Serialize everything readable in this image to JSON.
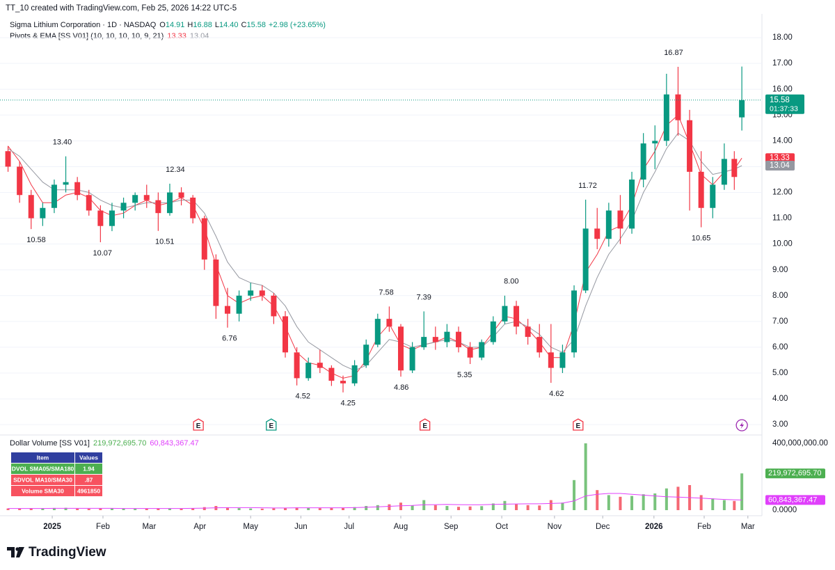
{
  "page": {
    "credit": "TT_10 created with TradingView.com, Feb 25, 2026 14:22 UTC-5",
    "brand": "TradingView"
  },
  "chart_data": [
    {
      "type": "candlestick",
      "header": {
        "symbol": "Sigma Lithium Corporation · 1D · NASDAQ",
        "ohlc": [
          {
            "label": "O",
            "value": "14.91"
          },
          {
            "label": "H",
            "value": "16.88"
          },
          {
            "label": "L",
            "value": "14.40"
          },
          {
            "label": "C",
            "value": "15.58"
          }
        ],
        "change": "+2.98 (+23.65%)",
        "indicator": "Pivots & EMA [SS V01] (10, 10, 10, 10, 9, 21)",
        "countdown": "01:37:33"
      },
      "x": [
        -0.88,
        -0.65,
        -0.42,
        -0.19,
        0.04,
        0.27,
        0.5,
        0.73,
        0.96,
        1.19,
        1.42,
        1.65,
        1.88,
        2.11,
        2.34,
        2.57,
        2.8,
        3.03,
        3.26,
        3.49,
        3.72,
        3.95,
        4.18,
        4.41,
        4.64,
        4.87,
        5.1,
        5.33,
        5.56,
        5.79,
        6.02,
        6.25,
        6.48,
        6.71,
        6.94,
        7.17,
        7.4,
        7.63,
        7.86,
        8.09,
        8.32,
        8.55,
        8.78,
        9.01,
        9.24,
        9.47,
        9.7,
        9.93,
        10.16,
        10.39,
        10.62,
        10.85,
        11.08,
        11.31,
        11.54,
        11.77,
        12.0,
        12.23,
        12.46,
        12.69,
        12.92,
        13.15,
        13.38,
        13.58,
        13.73
      ],
      "open": [
        13.6,
        13.0,
        11.9,
        11.0,
        11.4,
        12.3,
        12.4,
        11.9,
        11.3,
        10.7,
        11.3,
        11.6,
        11.9,
        11.7,
        11.2,
        12.0,
        11.8,
        11.0,
        9.4,
        7.6,
        7.3,
        8.0,
        8.2,
        8.0,
        7.2,
        5.8,
        4.8,
        5.4,
        5.2,
        4.7,
        4.6,
        5.3,
        6.1,
        7.1,
        6.8,
        5.1,
        6.0,
        6.4,
        6.2,
        6.6,
        6.0,
        5.6,
        6.2,
        7.0,
        7.6,
        6.8,
        6.4,
        5.8,
        5.2,
        5.8,
        8.2,
        10.6,
        10.2,
        11.3,
        10.6,
        12.5,
        13.9,
        14.0,
        15.8,
        14.8,
        12.8,
        11.4,
        12.3,
        13.3,
        14.91
      ],
      "high": [
        13.8,
        13.2,
        12.1,
        11.6,
        12.5,
        13.4,
        12.6,
        12.1,
        11.5,
        11.6,
        11.8,
        12.0,
        12.3,
        12.0,
        12.34,
        12.2,
        11.9,
        11.1,
        9.6,
        8.3,
        8.2,
        8.5,
        8.4,
        8.1,
        7.4,
        6.0,
        5.6,
        5.9,
        5.3,
        4.9,
        5.5,
        6.3,
        7.3,
        7.58,
        6.9,
        6.2,
        7.39,
        6.8,
        6.9,
        6.8,
        6.2,
        6.3,
        7.2,
        8.0,
        7.8,
        7.1,
        6.9,
        6.9,
        6.1,
        8.4,
        11.72,
        11.4,
        11.6,
        11.9,
        12.8,
        14.3,
        14.6,
        16.6,
        16.87,
        15.2,
        13.6,
        12.6,
        13.9,
        13.6,
        16.88
      ],
      "low": [
        12.8,
        11.6,
        10.58,
        10.7,
        11.2,
        12.0,
        11.7,
        11.1,
        10.07,
        10.5,
        11.0,
        11.3,
        11.4,
        10.51,
        11.1,
        11.5,
        10.8,
        9.0,
        7.1,
        6.76,
        7.0,
        7.8,
        7.8,
        6.9,
        5.6,
        4.52,
        4.7,
        5.0,
        4.5,
        4.25,
        4.5,
        5.2,
        6.0,
        6.6,
        4.86,
        5.0,
        5.9,
        5.9,
        6.0,
        5.8,
        5.35,
        5.5,
        6.1,
        6.9,
        6.5,
        6.1,
        5.6,
        4.62,
        5.0,
        5.6,
        8.1,
        9.8,
        9.9,
        10.0,
        10.4,
        12.2,
        12.9,
        13.8,
        14.2,
        11.3,
        10.65,
        11.0,
        12.1,
        12.1,
        14.4
      ],
      "close": [
        13.0,
        11.9,
        11.0,
        11.4,
        12.3,
        12.4,
        11.9,
        11.3,
        10.7,
        11.3,
        11.6,
        11.9,
        11.7,
        11.2,
        12.0,
        11.8,
        11.0,
        9.4,
        7.6,
        7.3,
        8.0,
        8.2,
        8.0,
        7.2,
        5.8,
        4.8,
        5.4,
        5.2,
        4.7,
        4.6,
        5.3,
        6.1,
        7.1,
        6.8,
        5.1,
        6.0,
        6.4,
        6.2,
        6.6,
        6.0,
        5.6,
        6.2,
        7.0,
        7.6,
        6.8,
        6.4,
        5.8,
        5.2,
        5.8,
        8.2,
        10.6,
        10.2,
        11.3,
        10.6,
        12.5,
        13.9,
        14.0,
        15.8,
        14.8,
        12.8,
        11.4,
        12.3,
        13.3,
        12.6,
        15.58
      ],
      "up_color": "#089981",
      "down_color": "#f23645",
      "ema": [
        {
          "color": "#f23645",
          "values": [
            13.8,
            13.2,
            12.3,
            11.6,
            11.6,
            11.9,
            12.0,
            11.8,
            11.3,
            11.1,
            11.2,
            11.5,
            11.7,
            11.5,
            11.6,
            11.8,
            11.5,
            10.6,
            9.2,
            8.0,
            7.7,
            7.9,
            8.0,
            7.6,
            6.8,
            5.8,
            5.4,
            5.3,
            5.0,
            4.8,
            4.9,
            5.5,
            6.4,
            6.9,
            6.1,
            5.9,
            6.1,
            6.2,
            6.4,
            6.2,
            5.9,
            6.0,
            6.6,
            7.2,
            7.1,
            6.7,
            6.2,
            5.6,
            5.6,
            6.9,
            8.9,
            9.6,
            10.5,
            10.7,
            11.5,
            12.9,
            13.6,
            14.6,
            15.0,
            13.9,
            12.7,
            12.3,
            12.8,
            12.9,
            13.33
          ]
        },
        {
          "color": "#9598a1",
          "values": [
            13.7,
            13.4,
            12.9,
            12.4,
            12.1,
            12.1,
            12.1,
            12.0,
            11.7,
            11.5,
            11.4,
            11.5,
            11.6,
            11.6,
            11.6,
            11.7,
            11.7,
            11.2,
            10.3,
            9.3,
            8.7,
            8.5,
            8.4,
            8.1,
            7.6,
            6.8,
            6.2,
            5.9,
            5.6,
            5.3,
            5.1,
            5.3,
            5.8,
            6.3,
            6.2,
            6.0,
            6.1,
            6.2,
            6.3,
            6.2,
            6.0,
            6.0,
            6.4,
            6.9,
            7.0,
            6.8,
            6.5,
            6.0,
            5.8,
            6.3,
            7.6,
            8.7,
            9.6,
            10.2,
            10.9,
            12.0,
            12.8,
            13.7,
            14.3,
            14.0,
            13.2,
            12.7,
            12.8,
            12.9,
            13.04
          ]
        }
      ],
      "pivots": [
        {
          "text": "10.58",
          "value": 10.58,
          "x": -0.32,
          "kind": "low"
        },
        {
          "text": "13.40",
          "value": 13.4,
          "x": 0.2,
          "kind": "high"
        },
        {
          "text": "10.07",
          "value": 10.07,
          "x": 1.0,
          "kind": "low"
        },
        {
          "text": "10.51",
          "value": 10.51,
          "x": 2.24,
          "kind": "low"
        },
        {
          "text": "12.34",
          "value": 12.34,
          "x": 2.45,
          "kind": "high"
        },
        {
          "text": "6.76",
          "value": 6.76,
          "x": 3.53,
          "kind": "low"
        },
        {
          "text": "4.52",
          "value": 4.52,
          "x": 4.99,
          "kind": "low"
        },
        {
          "text": "4.25",
          "value": 4.25,
          "x": 5.89,
          "kind": "low"
        },
        {
          "text": "7.58",
          "value": 7.58,
          "x": 6.65,
          "kind": "high"
        },
        {
          "text": "4.86",
          "value": 4.86,
          "x": 6.95,
          "kind": "low"
        },
        {
          "text": "7.39",
          "value": 7.39,
          "x": 7.4,
          "kind": "high"
        },
        {
          "text": "5.35",
          "value": 5.35,
          "x": 8.21,
          "kind": "low"
        },
        {
          "text": "8.00",
          "value": 8.0,
          "x": 9.14,
          "kind": "high"
        },
        {
          "text": "4.62",
          "value": 4.62,
          "x": 10.04,
          "kind": "low"
        },
        {
          "text": "11.72",
          "value": 11.72,
          "x": 10.66,
          "kind": "high"
        },
        {
          "text": "16.87",
          "value": 16.87,
          "x": 12.37,
          "kind": "high"
        },
        {
          "text": "10.65",
          "value": 10.65,
          "x": 12.92,
          "kind": "low"
        }
      ],
      "events": [
        {
          "label": "E",
          "x": 2.91,
          "color": "#f23645"
        },
        {
          "label": "E",
          "x": 4.36,
          "color": "#089981"
        },
        {
          "label": "E",
          "x": 7.42,
          "color": "#f23645"
        },
        {
          "label": "E",
          "x": 10.47,
          "color": "#f23645"
        },
        {
          "x": 13.73,
          "color": "#9c27b0"
        }
      ],
      "xlim": [
        -1.04,
        14.13
      ],
      "xticks": [
        {
          "value": 0,
          "label": "2025"
        },
        {
          "value": 1.01,
          "label": "Feb"
        },
        {
          "value": 1.93,
          "label": "Mar"
        },
        {
          "value": 2.94,
          "label": "Apr"
        },
        {
          "value": 3.95,
          "label": "May"
        },
        {
          "value": 4.95,
          "label": "Jun"
        },
        {
          "value": 5.91,
          "label": "Jul"
        },
        {
          "value": 6.94,
          "label": "Aug"
        },
        {
          "value": 7.94,
          "label": "Sep"
        },
        {
          "value": 8.95,
          "label": "Oct"
        },
        {
          "value": 10.0,
          "label": "Nov"
        },
        {
          "value": 10.96,
          "label": "Dec"
        },
        {
          "value": 11.98,
          "label": "2026"
        },
        {
          "value": 12.98,
          "label": "Feb"
        },
        {
          "value": 13.85,
          "label": "Mar"
        }
      ],
      "ylim": [
        2.68,
        18.92
      ],
      "yticks": [
        {
          "value": 3,
          "label": "3.00"
        },
        {
          "value": 4,
          "label": "4.00"
        },
        {
          "value": 5,
          "label": "5.00"
        },
        {
          "value": 6,
          "label": "6.00"
        },
        {
          "value": 7,
          "label": "7.00"
        },
        {
          "value": 8,
          "label": "8.00"
        },
        {
          "value": 9,
          "label": "9.00"
        },
        {
          "value": 10,
          "label": "10.00"
        },
        {
          "value": 11,
          "label": "11.00"
        },
        {
          "value": 12,
          "label": "12.00"
        },
        {
          "value": 13,
          "label": "13.00"
        },
        {
          "value": 14,
          "label": "14.00"
        },
        {
          "value": 15,
          "label": "15.00"
        },
        {
          "value": 16,
          "label": "16.00"
        },
        {
          "value": 17,
          "label": "17.00"
        },
        {
          "value": 18,
          "label": "18.00"
        }
      ],
      "grid": true
    },
    {
      "type": "bar",
      "title": "Dollar Volume [SS V01]",
      "last_label": "219,972,695.70",
      "ma_label": "60,843,367.47",
      "values": [
        10000000,
        9000000,
        12000000,
        11000000,
        13000000,
        14000000,
        9000000,
        8000000,
        12000000,
        10000000,
        9000000,
        8000000,
        9000000,
        11000000,
        10000000,
        9000000,
        11000000,
        18000000,
        25000000,
        15000000,
        12000000,
        10000000,
        9000000,
        11000000,
        14000000,
        16000000,
        13000000,
        12000000,
        14000000,
        15000000,
        18000000,
        25000000,
        30000000,
        35000000,
        45000000,
        28000000,
        60000000,
        30000000,
        25000000,
        20000000,
        22000000,
        24000000,
        40000000,
        55000000,
        35000000,
        30000000,
        28000000,
        60000000,
        45000000,
        180000000,
        400000000,
        120000000,
        90000000,
        80000000,
        85000000,
        95000000,
        100000000,
        130000000,
        140000000,
        150000000,
        90000000,
        70000000,
        60000000,
        55000000,
        219972695.7
      ],
      "ma": {
        "color": "#e040fb",
        "values": [
          10000000,
          10000000,
          10000000,
          10000000,
          11000000,
          11000000,
          11000000,
          11000000,
          11000000,
          11000000,
          10000000,
          10000000,
          10000000,
          10000000,
          10000000,
          10000000,
          11000000,
          12000000,
          14000000,
          15000000,
          15000000,
          15000000,
          14000000,
          13000000,
          13000000,
          14000000,
          14000000,
          14000000,
          14000000,
          14000000,
          15000000,
          17000000,
          20000000,
          23000000,
          26000000,
          28000000,
          32000000,
          33000000,
          34000000,
          33000000,
          32000000,
          32000000,
          34000000,
          36000000,
          37000000,
          38000000,
          38000000,
          40000000,
          42000000,
          55000000,
          85000000,
          95000000,
          100000000,
          100000000,
          95000000,
          90000000,
          85000000,
          80000000,
          78000000,
          75000000,
          72000000,
          68000000,
          64000000,
          62000000,
          60843367.47
        ]
      },
      "bar_color": "#4caf50",
      "last_color": "#4caf50",
      "ylim": [
        -29200000,
        441700000
      ],
      "yticks": [
        {
          "value": 400000000,
          "label": "400,000,000.00"
        },
        {
          "value": 0,
          "label": "0.0000"
        }
      ],
      "table": {
        "header": [
          "Item",
          "Values"
        ],
        "rows": [
          [
            "DVOL SMA05/SMA180",
            "1.94"
          ],
          [
            "SDVOL MA10/SMA30",
            ".87"
          ],
          [
            "Volume SMA30",
            "4961850"
          ]
        ],
        "row_colors": [
          "#4caf50",
          "#f7525f",
          "#f7525f"
        ],
        "header_color": "#303f9f"
      }
    }
  ]
}
